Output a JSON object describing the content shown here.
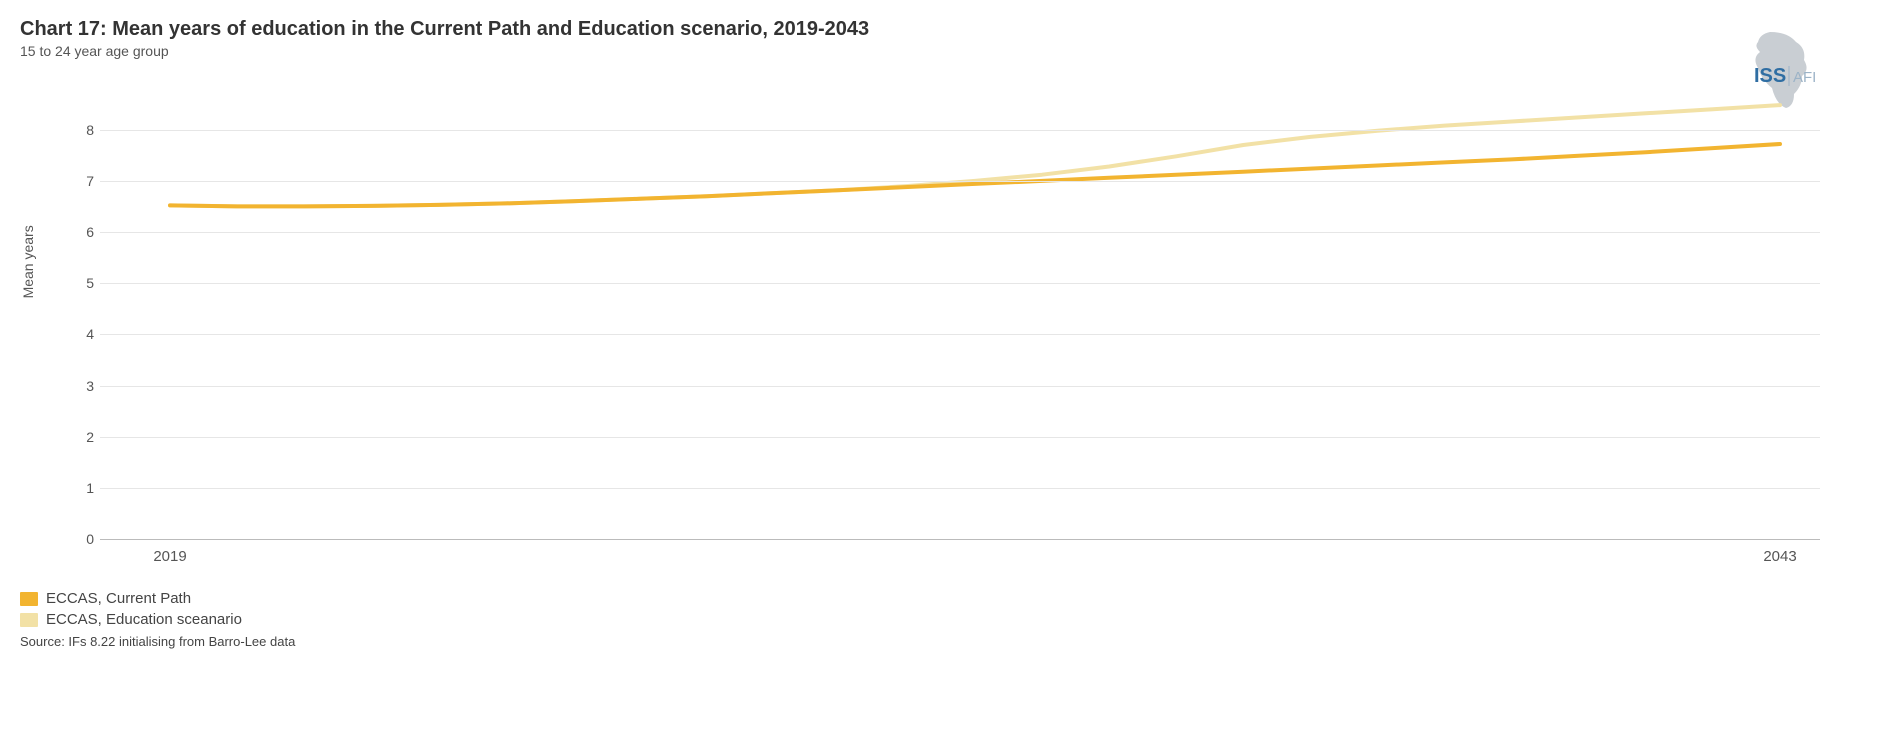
{
  "title": "Chart 17: Mean years of education in the Current Path and Education scenario, 2019-2043",
  "subtitle": "15 to 24 year age group",
  "source": "Source: IFs 8.22 initialising from Barro-Lee data",
  "logo": {
    "text_main": "ISS",
    "text_sub": "AFI",
    "main_color": "#2f6ea3",
    "sub_color": "#9cb3c7",
    "shape_color": "#c9ced3"
  },
  "chart": {
    "type": "line",
    "y_label": "Mean years",
    "background_color": "#ffffff",
    "grid_color": "#e6e6e6",
    "axis_line_color": "#bbbbbb",
    "tick_font_size": 14,
    "label_font_size": 14,
    "title_font_size": 20,
    "line_width": 4,
    "x": {
      "min": 2019,
      "max": 2043,
      "ticks": [
        2019,
        2043
      ]
    },
    "y": {
      "min": 0,
      "max": 8.6,
      "ticks": [
        0,
        1,
        2,
        3,
        4,
        5,
        6,
        7,
        8
      ]
    },
    "series": [
      {
        "id": "current_path",
        "label": "ECCAS, Current Path",
        "color": "#f2b430",
        "points": [
          [
            2019,
            6.52
          ],
          [
            2020,
            6.5
          ],
          [
            2021,
            6.5
          ],
          [
            2022,
            6.51
          ],
          [
            2023,
            6.53
          ],
          [
            2024,
            6.56
          ],
          [
            2025,
            6.6
          ],
          [
            2026,
            6.65
          ],
          [
            2027,
            6.7
          ],
          [
            2028,
            6.76
          ],
          [
            2029,
            6.82
          ],
          [
            2030,
            6.88
          ],
          [
            2031,
            6.94
          ],
          [
            2032,
            7.0
          ],
          [
            2033,
            7.06
          ],
          [
            2034,
            7.12
          ],
          [
            2035,
            7.18
          ],
          [
            2036,
            7.24
          ],
          [
            2037,
            7.3
          ],
          [
            2038,
            7.36
          ],
          [
            2039,
            7.42
          ],
          [
            2040,
            7.49
          ],
          [
            2041,
            7.56
          ],
          [
            2042,
            7.64
          ],
          [
            2043,
            7.72
          ]
        ]
      },
      {
        "id": "education_scenario",
        "label": "ECCAS, Education sceanario",
        "color": "#f2e1a6",
        "points": [
          [
            2019,
            6.52
          ],
          [
            2020,
            6.5
          ],
          [
            2021,
            6.5
          ],
          [
            2022,
            6.51
          ],
          [
            2023,
            6.53
          ],
          [
            2024,
            6.56
          ],
          [
            2025,
            6.6
          ],
          [
            2026,
            6.65
          ],
          [
            2027,
            6.7
          ],
          [
            2028,
            6.76
          ],
          [
            2029,
            6.82
          ],
          [
            2030,
            6.9
          ],
          [
            2031,
            7.0
          ],
          [
            2032,
            7.12
          ],
          [
            2033,
            7.28
          ],
          [
            2034,
            7.48
          ],
          [
            2035,
            7.7
          ],
          [
            2036,
            7.86
          ],
          [
            2037,
            7.98
          ],
          [
            2038,
            8.08
          ],
          [
            2039,
            8.16
          ],
          [
            2040,
            8.24
          ],
          [
            2041,
            8.32
          ],
          [
            2042,
            8.4
          ],
          [
            2043,
            8.48
          ]
        ]
      }
    ]
  }
}
